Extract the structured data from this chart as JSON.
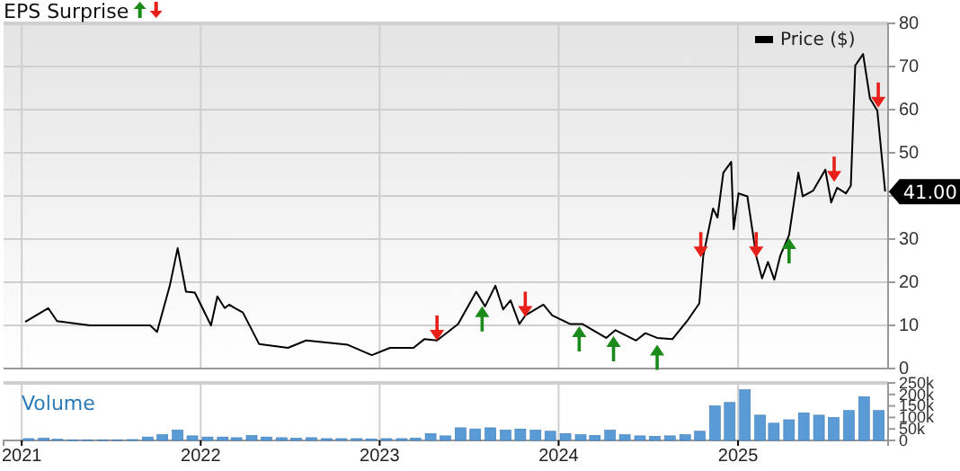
{
  "chart_data": [
    {
      "type": "line",
      "title": "EPS Surprise",
      "xlim": [
        "2020-11-25",
        "2025-11-03"
      ],
      "xticks": [
        {
          "value": "2021-01-01",
          "label": null
        },
        {
          "value": "2022-01-01",
          "label": null
        },
        {
          "value": "2023-01-01",
          "label": null
        },
        {
          "value": "2024-01-01",
          "label": null
        },
        {
          "value": "2025-01-01",
          "label": null
        }
      ],
      "ylim": [
        0,
        80
      ],
      "yticks": [
        0,
        10,
        20,
        30,
        {
          "value": 40,
          "label": null
        },
        50,
        60,
        70,
        80
      ],
      "grid": true,
      "tick_labels": "y",
      "legend": "top right",
      "series": [
        {
          "name": "Price ($)",
          "color": "#000000",
          "x": [
            "2021-01-08",
            "2021-02-24",
            "2021-03-14",
            "2021-05-20",
            "2021-09-20",
            "2021-10-04",
            "2021-10-30",
            "2021-11-15",
            "2021-12-02",
            "2021-12-20",
            "2022-01-22",
            "2022-02-04",
            "2022-02-19",
            "2022-02-28",
            "2022-03-12",
            "2022-03-28",
            "2022-04-30",
            "2022-06-28",
            "2022-08-04",
            "2022-10-28",
            "2022-12-16",
            "2023-01-22",
            "2023-03-11",
            "2023-04-02",
            "2023-04-28",
            "2023-06-10",
            "2023-07-17",
            "2023-08-04",
            "2023-08-25",
            "2023-09-10",
            "2023-09-25",
            "2023-10-13",
            "2023-10-25",
            "2023-12-01",
            "2023-12-19",
            "2024-01-25",
            "2024-02-19",
            "2024-04-07",
            "2024-04-26",
            "2024-06-07",
            "2024-06-26",
            "2024-07-20",
            "2024-08-20",
            "2024-09-19",
            "2024-10-14",
            "2024-10-22",
            "2024-11-11",
            "2024-11-20",
            "2024-12-02",
            "2024-12-18",
            "2024-12-23",
            "2025-01-02",
            "2025-01-20",
            "2025-02-07",
            "2025-02-19",
            "2025-03-03",
            "2025-03-16",
            "2025-03-28",
            "2025-04-15",
            "2025-05-04",
            "2025-05-13",
            "2025-06-03",
            "2025-06-28",
            "2025-07-10",
            "2025-07-22",
            "2025-08-09",
            "2025-08-19",
            "2025-08-28",
            "2025-09-13",
            "2025-09-27",
            "2025-10-12",
            "2025-10-28"
          ],
          "values": [
            10.8,
            14.0,
            11.0,
            10.0,
            10.0,
            8.5,
            19.2,
            27.9,
            17.8,
            17.6,
            10.0,
            16.7,
            14.0,
            14.8,
            14.0,
            13.0,
            5.7,
            4.8,
            6.5,
            5.5,
            3.1,
            4.8,
            4.8,
            6.8,
            6.5,
            10.3,
            17.8,
            14.4,
            19.2,
            13.7,
            15.8,
            10.3,
            12.3,
            14.8,
            12.3,
            10.3,
            10.3,
            7.1,
            8.9,
            6.5,
            8.2,
            7.1,
            6.8,
            11.0,
            15.1,
            26.1,
            37.1,
            35.0,
            45.4,
            47.9,
            32.3,
            40.6,
            39.9,
            26.1,
            20.9,
            24.7,
            20.6,
            26.1,
            30.9,
            45.4,
            39.9,
            41.2,
            46.1,
            38.5,
            41.9,
            40.6,
            42.4,
            70.2,
            72.9,
            62.6,
            59.8,
            41.0
          ]
        },
        {
          "type": "scatter",
          "color": "#1a8a1a",
          "x": [
            "2023-07-29",
            "2024-02-12",
            "2024-04-22",
            "2024-07-20",
            "2025-04-15"
          ],
          "values": [
            11.5,
            6.9,
            4.6,
            2.6,
            27.3
          ]
        },
        {
          "type": "scatter",
          "color": "#e8201a",
          "x": [
            "2023-04-28",
            "2023-10-25",
            "2024-10-17",
            "2025-02-07",
            "2025-07-16",
            "2025-10-14"
          ],
          "values": [
            9.4,
            14.9,
            28.7,
            28.7,
            46.2,
            63.4
          ]
        }
      ],
      "annotations": [
        {
          "text": "41.00",
          "x": "2025-10-28",
          "y": 41.0
        }
      ]
    },
    {
      "type": "bar",
      "title": "Volume",
      "xlim": [
        "2020-11-25",
        "2025-11-03"
      ],
      "xticks": [
        {
          "value": "2021-01-01",
          "label": "2021"
        },
        {
          "value": "2022-01-01",
          "label": "2022"
        },
        {
          "value": "2023-01-01",
          "label": "2023"
        },
        {
          "value": "2024-01-01",
          "label": "2024"
        },
        {
          "value": "2025-01-01",
          "label": "2025"
        }
      ],
      "ylim": [
        0,
        250000
      ],
      "yticks": [
        {
          "value": 0,
          "label": "0"
        },
        {
          "value": 50000,
          "label": "50k"
        },
        {
          "value": 100000,
          "label": "100k"
        },
        {
          "value": 150000,
          "label": "150k"
        },
        {
          "value": 200000,
          "label": "200k"
        },
        {
          "value": 250000,
          "label": "250k"
        }
      ],
      "grid": "x",
      "color": "#5b9bd5",
      "x": [
        "2021-01-15",
        "2021-02-15",
        "2021-03-15",
        "2021-04-15",
        "2021-05-15",
        "2021-06-15",
        "2021-07-15",
        "2021-08-15",
        "2021-09-15",
        "2021-10-15",
        "2021-11-15",
        "2021-12-15",
        "2022-01-15",
        "2022-02-15",
        "2022-03-15",
        "2022-04-15",
        "2022-05-15",
        "2022-06-15",
        "2022-07-15",
        "2022-08-15",
        "2022-09-15",
        "2022-10-15",
        "2022-11-15",
        "2022-12-15",
        "2023-01-15",
        "2023-02-15",
        "2023-03-15",
        "2023-04-15",
        "2023-05-15",
        "2023-06-15",
        "2023-07-15",
        "2023-08-15",
        "2023-09-15",
        "2023-10-15",
        "2023-11-15",
        "2023-12-15",
        "2024-01-15",
        "2024-02-15",
        "2024-03-15",
        "2024-04-15",
        "2024-05-15",
        "2024-06-15",
        "2024-07-15",
        "2024-08-15",
        "2024-09-15",
        "2024-10-15",
        "2024-11-15",
        "2024-12-15",
        "2025-01-15",
        "2025-02-15",
        "2025-03-15",
        "2025-04-15",
        "2025-05-15",
        "2025-06-15",
        "2025-07-15",
        "2025-08-15",
        "2025-09-15",
        "2025-10-15"
      ],
      "values": [
        8000,
        10000,
        5000,
        3000,
        3000,
        3000,
        3000,
        4000,
        15000,
        25000,
        45000,
        20000,
        15000,
        15000,
        12000,
        22000,
        15000,
        12000,
        10000,
        12000,
        8000,
        8000,
        8000,
        7000,
        8000,
        8000,
        10000,
        30000,
        20000,
        55000,
        50000,
        55000,
        45000,
        50000,
        45000,
        40000,
        30000,
        25000,
        22000,
        45000,
        25000,
        20000,
        18000,
        20000,
        25000,
        40000,
        150000,
        165000,
        220000,
        110000,
        75000,
        90000,
        120000,
        110000,
        100000,
        130000,
        190000,
        130000
      ]
    }
  ]
}
